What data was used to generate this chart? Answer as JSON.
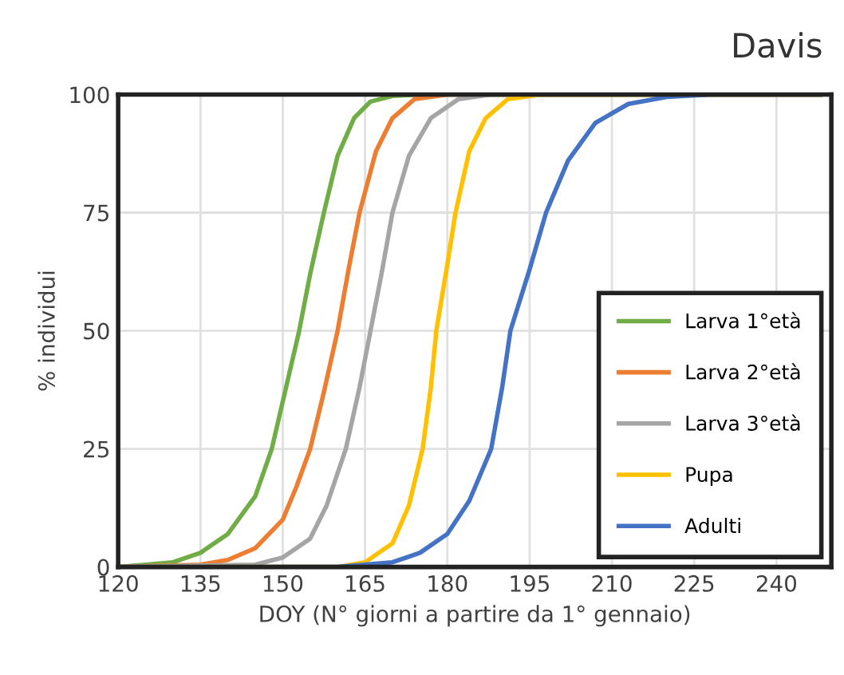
{
  "chart_data": {
    "type": "line",
    "title": "Davis",
    "xlabel": "DOY (N° giorni a partire da 1° gennaio)",
    "ylabel": "% individui",
    "xlim": [
      120,
      250
    ],
    "xticks": [
      120,
      135,
      150,
      165,
      180,
      195,
      210,
      225,
      240
    ],
    "ylim": [
      0,
      100
    ],
    "yticks": [
      0,
      25,
      50,
      75,
      100
    ],
    "grid": true,
    "legend": "right",
    "marker": "none",
    "line_style": "solid",
    "series": [
      {
        "name": "Larva 1°età",
        "color": "#70ad47",
        "x": [
          120,
          125,
          130,
          135,
          140,
          145,
          148,
          151,
          153,
          155,
          157.5,
          160,
          163,
          166,
          170,
          175,
          248
        ],
        "values": [
          0,
          0.5,
          1,
          3,
          7,
          15,
          25,
          40,
          50,
          62,
          75,
          87,
          95,
          98.5,
          99.7,
          100,
          100
        ]
      },
      {
        "name": "Larva 2°età",
        "color": "#ed7d31",
        "x": [
          120,
          135,
          140,
          145,
          150,
          152.5,
          155,
          157.5,
          160,
          162,
          164,
          167,
          170,
          174,
          180,
          248
        ],
        "values": [
          0,
          0.5,
          1.5,
          4,
          10,
          17,
          25,
          37,
          50,
          63,
          75,
          88,
          95,
          99,
          100,
          100
        ]
      },
      {
        "name": "Larva 3°età",
        "color": "#a5a5a5",
        "x": [
          120,
          145,
          150,
          155,
          158,
          161.5,
          164,
          166,
          168,
          170,
          173,
          177,
          182,
          188,
          248
        ],
        "values": [
          0,
          0.5,
          2,
          6,
          13,
          25,
          38,
          50,
          62,
          75,
          87,
          95,
          99,
          100,
          100
        ]
      },
      {
        "name": "Pupa",
        "color": "#ffc000",
        "x": [
          120,
          160,
          165,
          170,
          173,
          175.5,
          177,
          178,
          180,
          181.5,
          184,
          187,
          191,
          197,
          248
        ],
        "values": [
          0,
          0,
          1,
          5,
          13,
          25,
          38,
          50,
          64,
          75,
          88,
          95,
          99,
          100,
          100
        ]
      },
      {
        "name": "Adulti",
        "color": "#4472c4",
        "x": [
          120,
          160,
          170,
          175,
          180,
          184,
          188,
          190,
          191.5,
          195,
          198,
          202,
          207,
          213,
          220,
          228,
          248
        ],
        "values": [
          0,
          0,
          1,
          3,
          7,
          14,
          25,
          38,
          50,
          63,
          75,
          86,
          94,
          98,
          99.5,
          100,
          100
        ]
      }
    ]
  }
}
